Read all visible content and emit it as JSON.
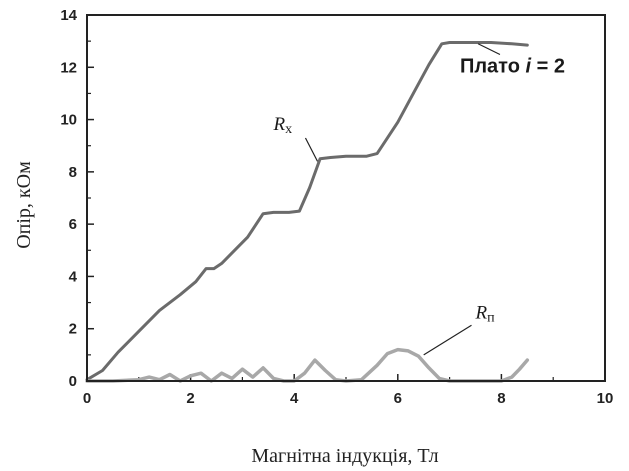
{
  "chart_data": {
    "type": "line",
    "title": "",
    "xlabel": "Магнітна індукція, Тл",
    "ylabel": "Опір, кОм",
    "xlim": [
      0,
      10
    ],
    "ylim": [
      0,
      14
    ],
    "xticks": [
      "0",
      "2",
      "4",
      "6",
      "8",
      "10"
    ],
    "yticks": [
      "0",
      "2",
      "4",
      "6",
      "8",
      "10",
      "12",
      "14"
    ],
    "grid": false,
    "legend": "none",
    "series": [
      {
        "name": "Rx",
        "color": "#6b6b6b",
        "x": [
          0.0,
          0.3,
          0.6,
          1.0,
          1.4,
          1.8,
          2.1,
          2.3,
          2.45,
          2.6,
          2.9,
          3.1,
          3.4,
          3.6,
          3.9,
          4.1,
          4.3,
          4.5,
          4.7,
          5.0,
          5.4,
          5.6,
          6.0,
          6.3,
          6.6,
          6.85,
          7.0,
          7.3,
          7.8,
          8.2,
          8.5
        ],
        "y": [
          0.05,
          0.4,
          1.1,
          1.9,
          2.7,
          3.3,
          3.8,
          4.3,
          4.3,
          4.5,
          5.1,
          5.5,
          6.4,
          6.45,
          6.45,
          6.5,
          7.4,
          8.5,
          8.55,
          8.6,
          8.6,
          8.7,
          9.9,
          11.0,
          12.1,
          12.9,
          12.95,
          12.95,
          12.95,
          12.9,
          12.85
        ]
      },
      {
        "name": "Rп",
        "color": "#a8a8a8",
        "x": [
          0.0,
          0.5,
          1.0,
          1.2,
          1.4,
          1.6,
          1.8,
          2.0,
          2.2,
          2.4,
          2.6,
          2.8,
          3.0,
          3.2,
          3.4,
          3.6,
          3.8,
          4.0,
          4.2,
          4.4,
          4.6,
          4.8,
          5.0,
          5.3,
          5.6,
          5.8,
          6.0,
          6.2,
          6.4,
          6.6,
          6.8,
          7.0,
          7.5,
          8.0,
          8.2,
          8.35,
          8.5
        ],
        "y": [
          0.0,
          0.0,
          0.05,
          0.15,
          0.05,
          0.25,
          0.0,
          0.2,
          0.3,
          0.0,
          0.3,
          0.1,
          0.45,
          0.15,
          0.5,
          0.1,
          0.0,
          0.0,
          0.3,
          0.8,
          0.4,
          0.05,
          0.0,
          0.05,
          0.6,
          1.05,
          1.2,
          1.15,
          0.95,
          0.5,
          0.1,
          0.0,
          0.0,
          0.0,
          0.15,
          0.45,
          0.8
        ]
      }
    ],
    "annotations": {
      "rx": {
        "main": "R",
        "sub": "x",
        "x": 3.6,
        "y": 9.6,
        "pointer_to": [
          4.45,
          8.4
        ]
      },
      "rp": {
        "main": "R",
        "sub": "п",
        "x": 7.5,
        "y": 2.4,
        "pointer_to": [
          6.5,
          1.0
        ]
      },
      "plato": {
        "text": "Плато ",
        "italic": "i",
        "rest": " = 2",
        "x": 7.2,
        "y": 11.8,
        "pointer_to": [
          7.55,
          12.9
        ]
      }
    }
  }
}
